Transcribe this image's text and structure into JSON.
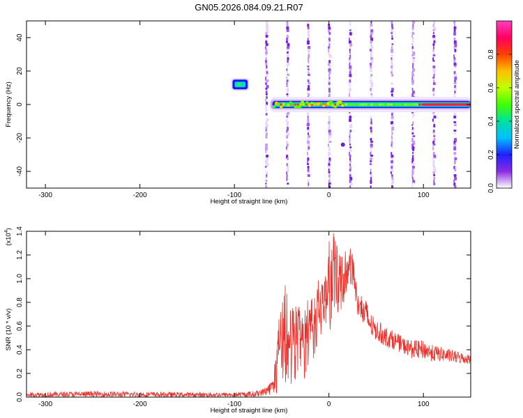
{
  "figure": {
    "title": "GN05.2026.084.09.21.R07"
  },
  "chart_data": [
    {
      "type": "heatmap",
      "xlabel": "Height of straight line (km)",
      "ylabel": "Frequency (Hz)",
      "xlim": [
        -320,
        150
      ],
      "ylim": [
        -50,
        50
      ],
      "xticks": [
        -300,
        -200,
        -100,
        0,
        100
      ],
      "yticks": [
        -40,
        -20,
        0,
        20,
        40
      ],
      "colorbar": {
        "label": "Normalized spectral amplitude",
        "range": [
          0,
          1
        ],
        "ticks": [
          "0.0",
          "0.2",
          "0.4",
          "0.6",
          "0.8"
        ],
        "colormap": [
          "#ffffff",
          "#8a2be2",
          "#2020ff",
          "#00c0ff",
          "#00e0a0",
          "#40ff00",
          "#c0ff00",
          "#ffc000",
          "#ff4000",
          "#ff0060",
          "#ff40c0"
        ]
      },
      "features": {
        "noise_region_x": [
          -320,
          -60
        ],
        "carrier_band": {
          "x": [
            -62,
            150
          ],
          "frequency": 0,
          "peak_amplitude": 0.9
        },
        "island": {
          "x": [
            -102,
            -86
          ],
          "frequency": 12,
          "amplitude": 0.35
        },
        "dot": {
          "x": 0,
          "frequency": -24
        }
      }
    },
    {
      "type": "line",
      "ylabel": "SNR (10 * v/v)",
      "y_multiplier": "(x10",
      "y_multiplier_exp": "4",
      "xlabel": "Height of straight line (km)",
      "xlim": [
        -320,
        150
      ],
      "ylim": [
        0,
        1.4
      ],
      "xticks": [
        -300,
        -200,
        -100,
        0,
        100
      ],
      "yticks": [
        "0.0",
        "0.2",
        "0.4",
        "0.6",
        "0.8",
        "1.0",
        "1.2",
        "1.4"
      ],
      "series": [
        {
          "color": "#e8302a",
          "envelope": {
            "x": [
              -320,
              -250,
              -150,
              -100,
              -80,
              -70,
              -60,
              -55,
              -50,
              -45,
              -40,
              -35,
              -30,
              -25,
              -20,
              -15,
              -10,
              -5,
              0,
              5,
              10,
              15,
              20,
              25,
              30,
              35,
              40,
              45,
              50,
              60,
              70,
              80,
              90,
              100,
              110,
              120,
              130,
              140,
              150
            ],
            "high": [
              0.04,
              0.05,
              0.04,
              0.04,
              0.05,
              0.07,
              0.15,
              0.5,
              0.95,
              1.05,
              0.75,
              0.8,
              0.75,
              0.8,
              0.95,
              0.85,
              1.05,
              0.95,
              1.32,
              1.4,
              1.25,
              1.2,
              1.28,
              1.25,
              0.95,
              0.85,
              0.82,
              0.7,
              0.65,
              0.6,
              0.55,
              0.5,
              0.48,
              0.48,
              0.44,
              0.42,
              0.4,
              0.38,
              0.36
            ],
            "low": [
              0.0,
              0.0,
              0.0,
              0.0,
              0.0,
              0.01,
              0.02,
              0.03,
              0.05,
              0.1,
              0.05,
              0.15,
              0.2,
              0.1,
              0.35,
              0.3,
              0.45,
              0.55,
              0.55,
              0.6,
              0.7,
              0.75,
              0.95,
              0.9,
              0.65,
              0.6,
              0.55,
              0.5,
              0.48,
              0.42,
              0.4,
              0.36,
              0.32,
              0.32,
              0.3,
              0.3,
              0.29,
              0.28,
              0.28
            ]
          }
        }
      ]
    }
  ]
}
